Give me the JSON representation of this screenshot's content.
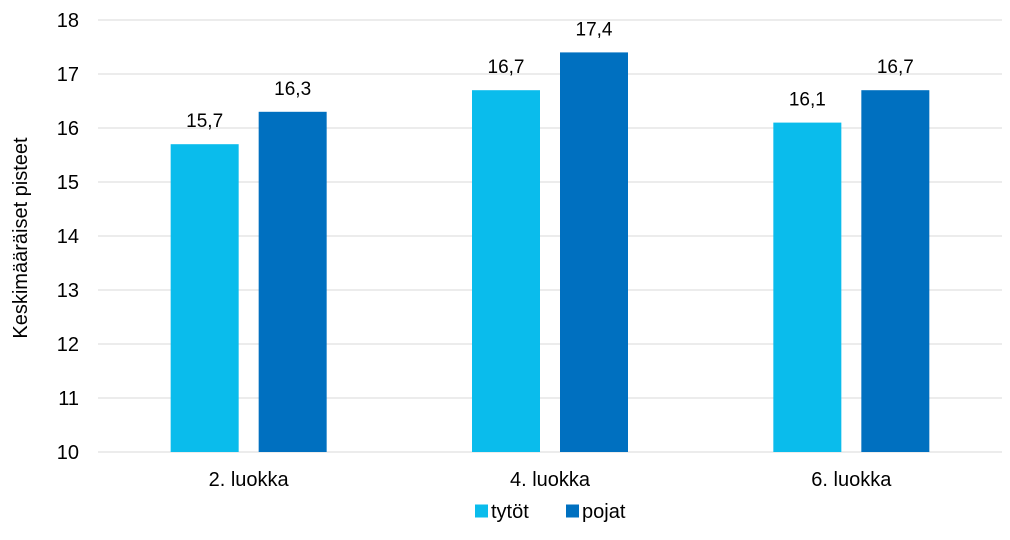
{
  "chart_data": {
    "type": "bar",
    "categories": [
      "2. luokka",
      "4. luokka",
      "6. luokka"
    ],
    "series": [
      {
        "name": "tytöt",
        "values": [
          15.7,
          16.7,
          16.1
        ],
        "labels": [
          "15,7",
          "16,7",
          "16,1"
        ],
        "color": "#0abcec"
      },
      {
        "name": "pojat",
        "values": [
          16.3,
          17.4,
          16.7
        ],
        "labels": [
          "16,3",
          "17,4",
          "16,7"
        ],
        "color": "#0070c0"
      }
    ],
    "ylabel": "Keskimääräiset pisteet",
    "xlabel": "",
    "ylim": [
      10,
      18
    ],
    "yticks": [
      10,
      11,
      12,
      13,
      14,
      15,
      16,
      17,
      18
    ],
    "grid": true,
    "gridColor": "#d9d9d9",
    "legend": "bottom-center"
  }
}
